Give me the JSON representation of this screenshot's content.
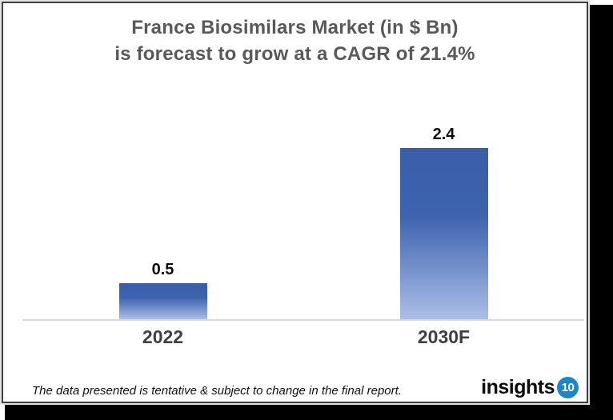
{
  "title": {
    "line1": "France Biosimilars Market (in $ Bn)",
    "line2": "is forecast to grow at a CAGR of 21.4%"
  },
  "footer": {
    "disclaimer": "The data presented is tentative & subject to change in the final report.",
    "brand": {
      "name": "insights",
      "badge": "10"
    }
  },
  "colors": {
    "bar_gradient_top": "#3A5EA8",
    "bar_gradient_mid": "#3E63AE",
    "bar_gradient_bottom": "#ABBEE7",
    "brand_blue": "#1E86C8",
    "title_text": "#595959",
    "category_text": "#3F3F3F",
    "value_text": "#0D0D0D",
    "axis_line": "#D9D9D9"
  },
  "chart_data": {
    "type": "bar",
    "title": "France Biosimilars Market (in $ Bn) is forecast to grow at a CAGR of 21.4%",
    "categories": [
      "2022",
      "2030F"
    ],
    "values": [
      0.5,
      2.4
    ],
    "value_labels": [
      "0.5",
      "2.4"
    ],
    "unit": "$ Bn",
    "cagr_pct": 21.4,
    "xlabel": "",
    "ylabel": "",
    "ylim": [
      0,
      3
    ],
    "grid": false,
    "legend": false,
    "bar_orientation": "vertical"
  }
}
